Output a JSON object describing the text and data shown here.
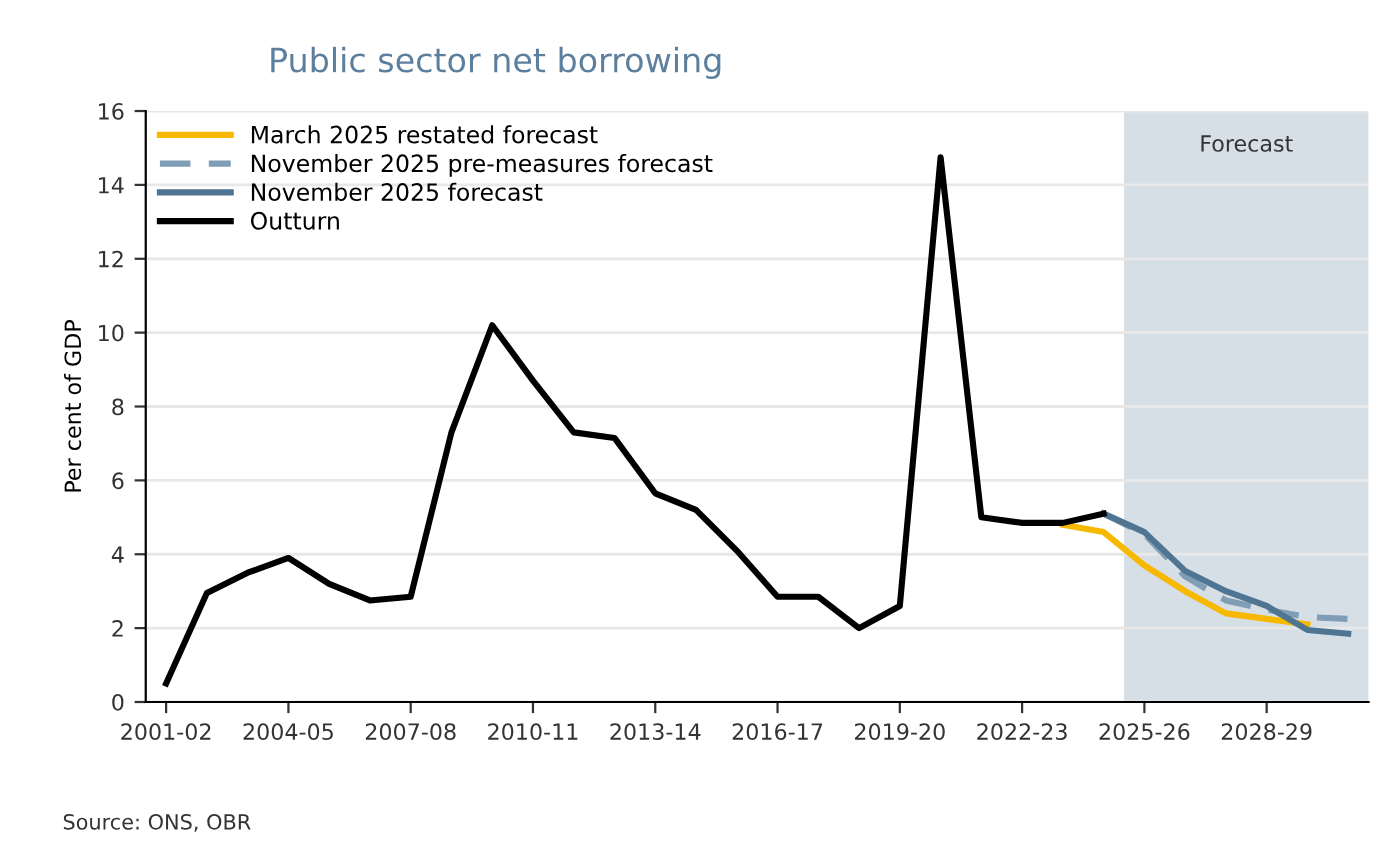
{
  "chart_data": {
    "type": "line",
    "title": "Public sector net borrowing",
    "ylabel": "Per cent of GDP",
    "categories": [
      "2001-02",
      null,
      null,
      "2004-05",
      null,
      null,
      "2007-08",
      null,
      null,
      "2010-11",
      null,
      null,
      "2013-14",
      null,
      null,
      "2016-17",
      null,
      null,
      "2019-20",
      null,
      null,
      "2022-23",
      null,
      null,
      "2025-26",
      null,
      null,
      "2028-29",
      null,
      null
    ],
    "ylim": [
      0,
      16
    ],
    "yticks": [
      0,
      2,
      4,
      6,
      8,
      10,
      12,
      14,
      16
    ],
    "grid": "y",
    "legend": "top left",
    "marker": "none",
    "bands": [
      {
        "axis": "x",
        "from": "2025-26",
        "to": "2030-31",
        "label": "Forecast",
        "color": "#d6dee6"
      }
    ],
    "annotations": [
      "Source: ONS, OBR"
    ],
    "series": [
      {
        "name": "March 2025 restated forecast",
        "color": "#f7b800",
        "line_style": "solid",
        "values": [
          null,
          null,
          null,
          null,
          null,
          null,
          null,
          null,
          null,
          null,
          null,
          null,
          null,
          null,
          null,
          null,
          null,
          null,
          null,
          null,
          null,
          null,
          4.8,
          4.6,
          3.7,
          3.0,
          2.4,
          2.25,
          2.1,
          null
        ]
      },
      {
        "name": "November 2025 pre-measures forecast",
        "color": "#7f9db5",
        "line_style": "dashed",
        "values": [
          null,
          null,
          null,
          null,
          null,
          null,
          null,
          null,
          null,
          null,
          null,
          null,
          null,
          null,
          null,
          null,
          null,
          null,
          null,
          null,
          null,
          null,
          null,
          5.1,
          4.55,
          3.4,
          2.75,
          2.5,
          2.3,
          2.25
        ]
      },
      {
        "name": "November 2025 forecast",
        "color": "#4f7592",
        "line_style": "solid",
        "values": [
          null,
          null,
          null,
          null,
          null,
          null,
          null,
          null,
          null,
          null,
          null,
          null,
          null,
          null,
          null,
          null,
          null,
          null,
          null,
          null,
          null,
          null,
          null,
          5.1,
          4.6,
          3.55,
          3.0,
          2.6,
          1.95,
          1.85
        ]
      },
      {
        "name": "Outturn",
        "color": "#000000",
        "line_style": "solid",
        "values": [
          0.5,
          2.95,
          3.5,
          3.9,
          3.2,
          2.75,
          2.85,
          7.3,
          10.2,
          8.7,
          7.3,
          7.15,
          5.65,
          5.2,
          4.1,
          2.85,
          2.85,
          2.0,
          2.6,
          14.75,
          5.0,
          4.85,
          4.85,
          5.1,
          null,
          null,
          null,
          null,
          null,
          null
        ]
      }
    ]
  }
}
